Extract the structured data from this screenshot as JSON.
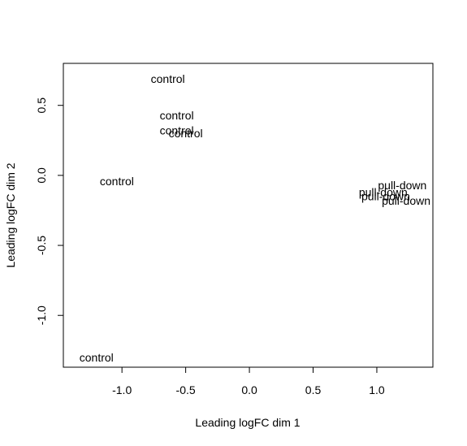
{
  "chart_data": {
    "type": "scatter",
    "title": "",
    "xlabel": "Leading logFC dim 1",
    "ylabel": "Leading logFC dim 2",
    "xlim": [
      -1.46,
      1.44
    ],
    "ylim": [
      -1.37,
      0.8
    ],
    "x_ticks": [
      -1.0,
      -0.5,
      0.0,
      0.5,
      1.0
    ],
    "x_tick_labels": [
      "-1.0",
      "-0.5",
      "0.0",
      "0.5",
      "1.0"
    ],
    "y_ticks": [
      -1.0,
      -0.5,
      0.0,
      0.5
    ],
    "y_tick_labels": [
      "-1.0",
      "-0.5",
      "0.0",
      "0.5"
    ],
    "grid": false,
    "legend": "none",
    "points": [
      {
        "label": "control",
        "x": -0.64,
        "y": 0.69
      },
      {
        "label": "control",
        "x": -0.57,
        "y": 0.43
      },
      {
        "label": "control",
        "x": -0.57,
        "y": 0.32
      },
      {
        "label": "control",
        "x": -0.5,
        "y": 0.3
      },
      {
        "label": "control",
        "x": -1.04,
        "y": -0.04
      },
      {
        "label": "control",
        "x": -1.2,
        "y": -1.3
      },
      {
        "label": "pull-down",
        "x": 1.2,
        "y": -0.07
      },
      {
        "label": "pull-down",
        "x": 1.05,
        "y": -0.12
      },
      {
        "label": "pull-down",
        "x": 1.07,
        "y": -0.15
      },
      {
        "label": "pull-down",
        "x": 1.23,
        "y": -0.18
      }
    ]
  }
}
